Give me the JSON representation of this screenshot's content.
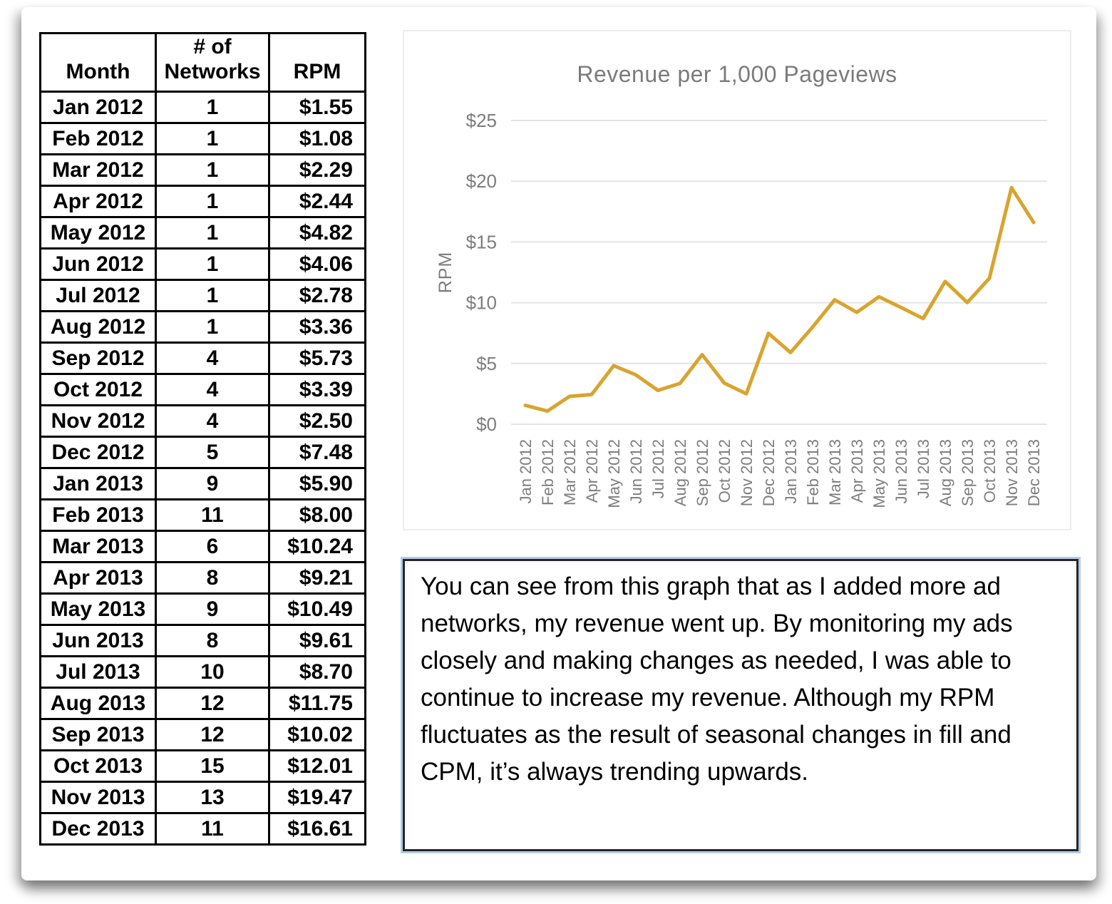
{
  "table": {
    "headers": [
      "Month",
      "# of Networks",
      "RPM"
    ],
    "rows": [
      [
        "Jan 2012",
        "1",
        "$1.55"
      ],
      [
        "Feb 2012",
        "1",
        "$1.08"
      ],
      [
        "Mar 2012",
        "1",
        "$2.29"
      ],
      [
        "Apr 2012",
        "1",
        "$2.44"
      ],
      [
        "May 2012",
        "1",
        "$4.82"
      ],
      [
        "Jun 2012",
        "1",
        "$4.06"
      ],
      [
        "Jul 2012",
        "1",
        "$2.78"
      ],
      [
        "Aug 2012",
        "1",
        "$3.36"
      ],
      [
        "Sep 2012",
        "4",
        "$5.73"
      ],
      [
        "Oct 2012",
        "4",
        "$3.39"
      ],
      [
        "Nov 2012",
        "4",
        "$2.50"
      ],
      [
        "Dec 2012",
        "5",
        "$7.48"
      ],
      [
        "Jan 2013",
        "9",
        "$5.90"
      ],
      [
        "Feb 2013",
        "11",
        "$8.00"
      ],
      [
        "Mar 2013",
        "6",
        "$10.24"
      ],
      [
        "Apr 2013",
        "8",
        "$9.21"
      ],
      [
        "May 2013",
        "9",
        "$10.49"
      ],
      [
        "Jun 2013",
        "8",
        "$9.61"
      ],
      [
        "Jul 2013",
        "10",
        "$8.70"
      ],
      [
        "Aug 2013",
        "12",
        "$11.75"
      ],
      [
        "Sep 2013",
        "12",
        "$10.02"
      ],
      [
        "Oct 2013",
        "15",
        "$12.01"
      ],
      [
        "Nov 2013",
        "13",
        "$19.47"
      ],
      [
        "Dec 2013",
        "11",
        "$16.61"
      ]
    ]
  },
  "chart_data": {
    "type": "line",
    "title": "Revenue per 1,000 Pageviews",
    "xlabel": "",
    "ylabel": "RPM",
    "x": [
      "Jan 2012",
      "Feb 2012",
      "Mar 2012",
      "Apr 2012",
      "May 2012",
      "Jun 2012",
      "Jul 2012",
      "Aug 2012",
      "Sep 2012",
      "Oct 2012",
      "Nov 2012",
      "Dec 2012",
      "Jan 2013",
      "Feb 2013",
      "Mar 2013",
      "Apr 2013",
      "May 2013",
      "Jun 2013",
      "Jul 2013",
      "Aug 2013",
      "Sep 2013",
      "Oct 2013",
      "Nov 2013",
      "Dec 2013"
    ],
    "series": [
      {
        "name": "RPM",
        "values": [
          1.55,
          1.08,
          2.29,
          2.44,
          4.82,
          4.06,
          2.78,
          3.36,
          5.73,
          3.39,
          2.5,
          7.48,
          5.9,
          8.0,
          10.24,
          9.21,
          10.49,
          9.61,
          8.7,
          11.75,
          10.02,
          12.01,
          19.47,
          16.61
        ]
      }
    ],
    "ylim": [
      0,
      25
    ],
    "ytick_step": 5,
    "ytick_labels": [
      "$0",
      "$5",
      "$10",
      "$15",
      "$20",
      "$25"
    ],
    "grid": true,
    "legend": "none",
    "line_color": "#D9A42E",
    "grid_color": "#e4e4e4",
    "axis_text_color": "#7d7d7d",
    "title_color": "#7b7b7b"
  },
  "note": {
    "text": "You can see from this graph that as I added more ad networks, my revenue went up. By monitoring my ads closely and making changes as needed, I was able to continue to increase my revenue. Although my RPM fluctuates as the result of seasonal changes in fill and CPM, it’s always trending upwards."
  }
}
